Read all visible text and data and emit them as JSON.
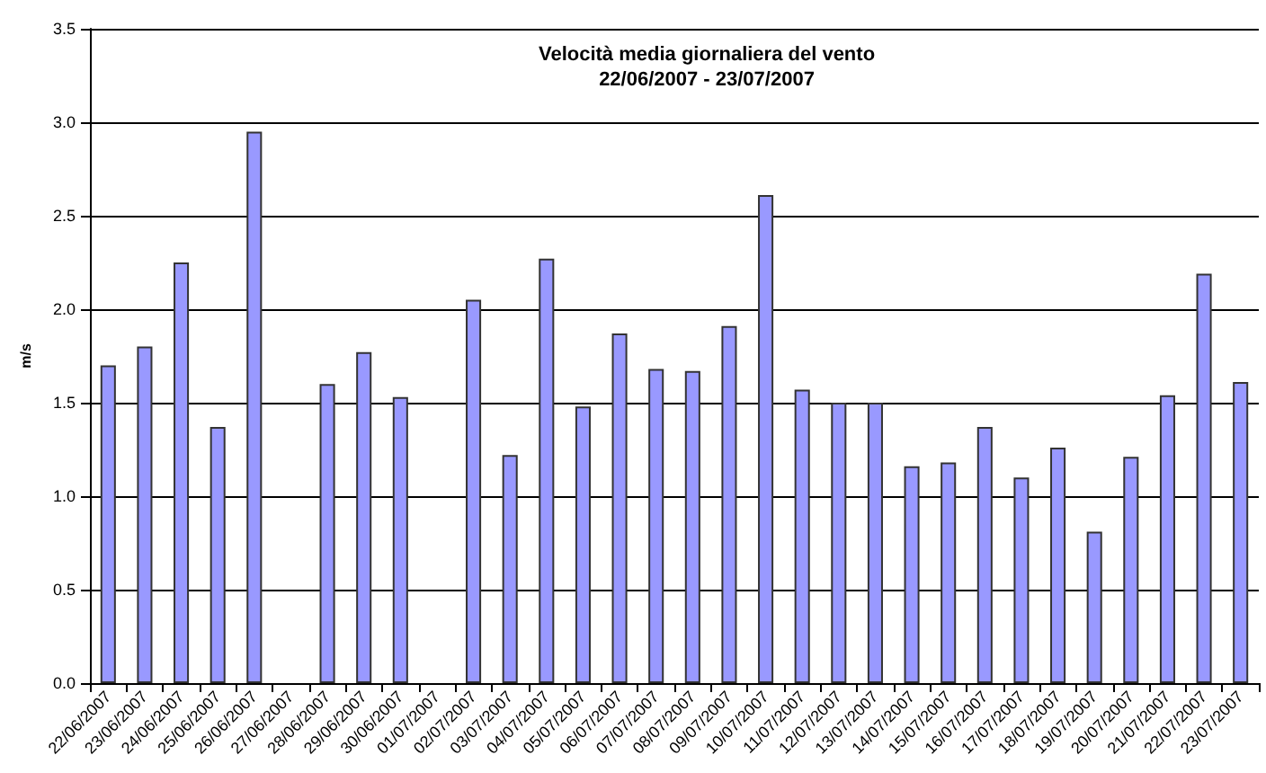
{
  "chart_data": {
    "type": "bar",
    "title": "Velocità media giornaliera del vento",
    "subtitle": "22/06/2007 - 23/07/2007",
    "ylabel": "m/s",
    "categories": [
      "22/06/2007",
      "23/06/2007",
      "24/06/2007",
      "25/06/2007",
      "26/06/2007",
      "27/06/2007",
      "28/06/2007",
      "29/06/2007",
      "30/06/2007",
      "01/07/2007",
      "02/07/2007",
      "03/07/2007",
      "04/07/2007",
      "05/07/2007",
      "06/07/2007",
      "07/07/2007",
      "08/07/2007",
      "09/07/2007",
      "10/07/2007",
      "11/07/2007",
      "12/07/2007",
      "13/07/2007",
      "14/07/2007",
      "15/07/2007",
      "16/07/2007",
      "17/07/2007",
      "18/07/2007",
      "19/07/2007",
      "20/07/2007",
      "21/07/2007",
      "22/07/2007",
      "23/07/2007"
    ],
    "values": [
      1.7,
      1.8,
      2.25,
      1.37,
      2.95,
      null,
      1.6,
      1.77,
      1.53,
      null,
      2.05,
      1.22,
      2.27,
      1.48,
      1.87,
      1.68,
      1.67,
      1.91,
      2.61,
      1.57,
      1.5,
      1.5,
      1.16,
      1.18,
      1.37,
      1.1,
      1.26,
      0.81,
      1.21,
      1.54,
      2.19,
      1.61
    ],
    "color": "#9999ff",
    "ylim": [
      0,
      3.5
    ],
    "yticks": [
      {
        "value": 0,
        "label": "0.0"
      },
      0.5,
      {
        "value": 1,
        "label": "1.0"
      },
      1.5,
      {
        "value": 2,
        "label": "2.0"
      },
      2.5,
      {
        "value": 3,
        "label": "3.0"
      },
      3.5
    ],
    "grid": "y"
  }
}
